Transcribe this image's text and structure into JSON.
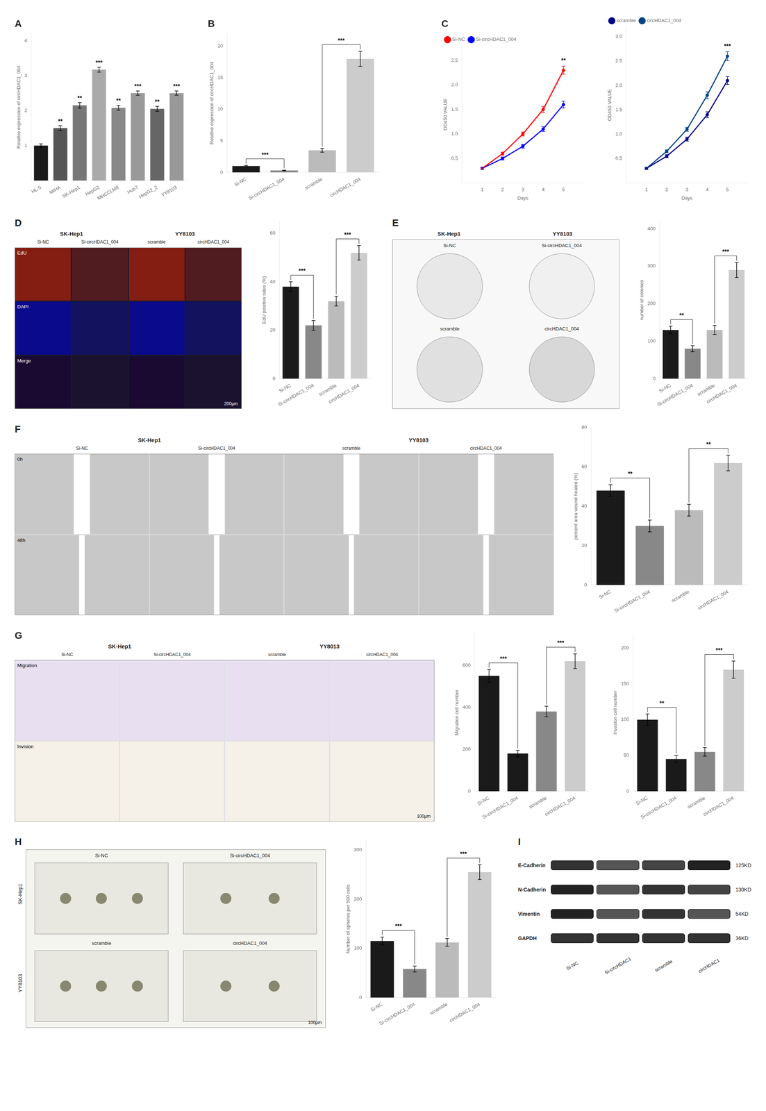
{
  "chart_data": [
    {
      "type": "bar",
      "title": "A",
      "categories": [
        "HL-5",
        "MIHA",
        "SK-Hep1",
        "HepG2",
        "MHCCLM8",
        "Huh7",
        "HepG2_2",
        "YY8103"
      ],
      "values": [
        1.0,
        1.5,
        2.15,
        3.17,
        2.08,
        2.5,
        2.05,
        2.5
      ],
      "errors": [
        0.05,
        0.07,
        0.08,
        0.07,
        0.07,
        0.06,
        0.07,
        0.06
      ],
      "colors": [
        "#1a1a1a",
        "#555555",
        "#777777",
        "#aaaaaa",
        "#888888",
        "#999999",
        "#666666",
        "#999999"
      ],
      "ylabel": "Relative expression of circHDAC1_004",
      "ylim": [
        0,
        4.2
      ],
      "yticks": [
        1,
        2,
        3,
        4
      ],
      "grid": false,
      "annotations": [
        {
          "category": "MIHA",
          "text": "**"
        },
        {
          "category": "SK-Hep1",
          "text": "**"
        },
        {
          "category": "HepG2",
          "text": "***"
        },
        {
          "category": "MHCCLM8",
          "text": "**"
        },
        {
          "category": "Huh7",
          "text": "***"
        },
        {
          "category": "HepG2_2",
          "text": "**"
        },
        {
          "category": "YY8103",
          "text": "***"
        }
      ]
    },
    {
      "type": "bar",
      "title": "B",
      "categories": [
        "Si-NC",
        "Si-circHDAC1_004",
        "scramble",
        "circHDAC1_004"
      ],
      "values": [
        1.0,
        0.3,
        3.5,
        18.0
      ],
      "errors": [
        0.1,
        0.05,
        0.3,
        1.2
      ],
      "colors": [
        "#1a1a1a",
        "#888888",
        "#bbbbbb",
        "#cccccc"
      ],
      "ylabel": "Relative expression of circHDAC1_004",
      "ylim": [
        0,
        22
      ],
      "yticks": [
        0,
        5,
        10,
        15,
        20
      ],
      "grid": false,
      "annotations": [
        {
          "from": "Si-NC",
          "to": "Si-circHDAC1_004",
          "text": "***"
        },
        {
          "from": "scramble",
          "to": "circHDAC1_004",
          "text": "***"
        }
      ]
    },
    {
      "type": "line",
      "title": "C",
      "x": [
        1,
        2,
        3,
        4,
        5
      ],
      "series": [
        {
          "name": "Si-NC",
          "color": "#ff0000",
          "marker": "circle",
          "values": [
            0.3,
            0.6,
            1.0,
            1.5,
            2.3
          ],
          "errors": [
            0.02,
            0.03,
            0.04,
            0.06,
            0.08
          ]
        },
        {
          "name": "Si-circHDAC1_004",
          "color": "#0000ff",
          "marker": "circle",
          "values": [
            0.3,
            0.5,
            0.75,
            1.1,
            1.6
          ],
          "errors": [
            0.02,
            0.03,
            0.04,
            0.05,
            0.07
          ]
        }
      ],
      "xlabel": "Days",
      "ylabel": "OD450 VALUE",
      "xlim": [
        0,
        6
      ],
      "xticks": [
        1,
        2,
        3,
        4,
        5
      ],
      "ylim": [
        0,
        2.8
      ],
      "yticks": [
        0.5,
        {
          "value": 1.0,
          "label": "1.0"
        },
        1.5,
        {
          "value": 2.0,
          "label": "2.0"
        },
        2.5
      ],
      "grid": false,
      "legend": "upper left",
      "annotations": [
        {
          "series": "Si-NC",
          "x": 5,
          "text": "**"
        }
      ]
    },
    {
      "type": "line",
      "x": [
        1,
        2,
        3,
        4,
        5
      ],
      "series": [
        {
          "name": "scramble",
          "color": "#000088",
          "marker": "circle",
          "values": [
            0.3,
            0.55,
            0.9,
            1.4,
            2.1
          ],
          "errors": [
            0.02,
            0.03,
            0.04,
            0.06,
            0.08
          ]
        },
        {
          "name": "circHDAC1_004",
          "color": "#004488",
          "marker": "circle",
          "values": [
            0.3,
            0.65,
            1.1,
            1.8,
            2.6
          ],
          "errors": [
            0.02,
            0.03,
            0.04,
            0.07,
            0.09
          ]
        }
      ],
      "xlabel": "Days",
      "ylabel": "OD450 VALUE",
      "xlim": [
        0,
        6
      ],
      "xticks": [
        1,
        2,
        3,
        4,
        5
      ],
      "ylim": [
        0,
        3.2
      ],
      "yticks": [
        0.5,
        {
          "value": 1.0,
          "label": "1.0"
        },
        1.5,
        {
          "value": 2.0,
          "label": "2.0"
        },
        2.5,
        {
          "value": 3.0,
          "label": "3.0"
        }
      ],
      "grid": false,
      "legend": "upper left",
      "annotations": [
        {
          "series": "circHDAC1_004",
          "x": 5,
          "text": "***"
        }
      ]
    },
    {
      "type": "image",
      "title": "D",
      "groups": [
        "SK-Hep1",
        "YY8103"
      ],
      "categories": [
        "Si-NC",
        "Si-circHDAC1_004",
        "scramble",
        "circHDAC1_004"
      ],
      "rows": [
        "EdU",
        "DAPI",
        "Merge"
      ],
      "annotations": [
        "200μm"
      ]
    },
    {
      "type": "bar",
      "categories": [
        "Si-NC",
        "Si-circHDAC1_004",
        "scramble",
        "circHDAC1_004"
      ],
      "values": [
        38,
        22,
        32,
        52
      ],
      "errors": [
        2,
        2,
        2,
        3
      ],
      "colors": [
        "#1a1a1a",
        "#888888",
        "#bbbbbb",
        "#cccccc"
      ],
      "ylabel": "EdU positive rates (%)",
      "ylim": [
        0,
        65
      ],
      "yticks": [
        0,
        20,
        40,
        60
      ],
      "grid": false,
      "annotations": [
        {
          "from": "Si-NC",
          "to": "Si-circHDAC1_004",
          "text": "***"
        },
        {
          "from": "scramble",
          "to": "circHDAC1_004",
          "text": "***"
        }
      ]
    },
    {
      "type": "image",
      "title": "E",
      "groups": [
        "SK-Hep1",
        "YY8103"
      ],
      "categories": [
        "Si-NC",
        "Si-circHDAC1_004",
        "scramble",
        "circHDAC1_004"
      ]
    },
    {
      "type": "bar",
      "categories": [
        "Si-NC",
        "Si-circHDAC1_004",
        "scramble",
        "circHDAC1_004"
      ],
      "values": [
        130,
        80,
        130,
        290
      ],
      "errors": [
        10,
        8,
        12,
        20
      ],
      "colors": [
        "#1a1a1a",
        "#888888",
        "#bbbbbb",
        "#cccccc"
      ],
      "ylabel": "number of colonies",
      "ylim": [
        0,
        420
      ],
      "yticks": [
        0,
        100,
        200,
        300,
        400
      ],
      "grid": false,
      "annotations": [
        {
          "from": "Si-NC",
          "to": "Si-circHDAC1_004",
          "text": "**"
        },
        {
          "from": "scramble",
          "to": "circHDAC1_004",
          "text": "***"
        }
      ]
    },
    {
      "type": "image",
      "title": "F",
      "groups": [
        "SK-Hep1",
        "YY8103"
      ],
      "categories": [
        "Si-NC",
        "Si-circHDAC1_004",
        "scramble",
        "circHDAC1_004"
      ],
      "rows": [
        "0h",
        "48h"
      ]
    },
    {
      "type": "bar",
      "categories": [
        "Si-NC",
        "Si-circHDAC1_004",
        "scramble",
        "circHDAC1_004"
      ],
      "values": [
        48,
        30,
        38,
        62
      ],
      "errors": [
        3,
        3,
        3,
        4
      ],
      "colors": [
        "#1a1a1a",
        "#888888",
        "#bbbbbb",
        "#cccccc"
      ],
      "ylabel": "percent area wound healed (%)",
      "ylim": [
        0,
        80
      ],
      "yticks": [
        0,
        20,
        40,
        60,
        80
      ],
      "grid": false,
      "annotations": [
        {
          "from": "Si-NC",
          "to": "Si-circHDAC1_004",
          "text": "**"
        },
        {
          "from": "scramble",
          "to": "circHDAC1_004",
          "text": "**"
        }
      ]
    },
    {
      "type": "image",
      "title": "G",
      "groups": [
        "SK-Hep1",
        "YY8013"
      ],
      "categories": [
        "Si-NC",
        "Si-circHDAC1_004",
        "scramble",
        "circHDAC1_004"
      ],
      "rows": [
        "Migration",
        "Invision"
      ],
      "annotations": [
        "100μm"
      ]
    },
    {
      "type": "bar",
      "categories": [
        "Si-NC",
        "Si-circHDAC1_004",
        "scramble",
        "circHDAC1_004"
      ],
      "values": [
        550,
        180,
        380,
        620
      ],
      "errors": [
        30,
        15,
        25,
        35
      ],
      "colors": [
        "#1a1a1a",
        "#1a1a1a",
        "#888888",
        "#cccccc"
      ],
      "ylabel": "Migration cell number",
      "ylim": [
        0,
        750
      ],
      "yticks": [
        0,
        200,
        400,
        600
      ],
      "grid": false,
      "annotations": [
        {
          "from": "Si-NC",
          "to": "Si-circHDAC1_004",
          "text": "***"
        },
        {
          "from": "scramble",
          "to": "circHDAC1_004",
          "text": "***"
        }
      ]
    },
    {
      "type": "bar",
      "categories": [
        "Si-NC",
        "Si-circHDAC1_004",
        "scramble",
        "circHDAC1_004"
      ],
      "values": [
        100,
        45,
        55,
        170
      ],
      "errors": [
        8,
        5,
        6,
        12
      ],
      "colors": [
        "#1a1a1a",
        "#1a1a1a",
        "#888888",
        "#cccccc"
      ],
      "ylabel": "Invasion cell number",
      "ylim": [
        0,
        220
      ],
      "yticks": [
        0,
        50,
        100,
        150,
        200
      ],
      "grid": false,
      "annotations": [
        {
          "from": "Si-NC",
          "to": "Si-circHDAC1_004",
          "text": "**"
        },
        {
          "from": "scramble",
          "to": "circHDAC1_004",
          "text": "***"
        }
      ]
    },
    {
      "type": "image",
      "title": "H",
      "groups": [
        "SK-Hep1",
        "YY8103"
      ],
      "categories": [
        "Si-NC",
        "Si-circHDAC1_004",
        "scramble",
        "circHDAC1_004"
      ],
      "annotations": [
        "100μm"
      ]
    },
    {
      "type": "bar",
      "categories": [
        "Si-NC",
        "Si-circHDAC1_004",
        "scramble",
        "circHDAC1_004"
      ],
      "values": [
        115,
        58,
        112,
        255
      ],
      "errors": [
        8,
        6,
        8,
        15
      ],
      "colors": [
        "#1a1a1a",
        "#888888",
        "#bbbbbb",
        "#cccccc"
      ],
      "ylabel": "Number of spheres per 500 cells",
      "ylim": [
        0,
        320
      ],
      "yticks": [
        0,
        100,
        200,
        300
      ],
      "grid": false,
      "annotations": [
        {
          "from": "Si-NC",
          "to": "Si-circHDAC1_004",
          "text": "***"
        },
        {
          "from": "scramble",
          "to": "circHDAC1_004",
          "text": "***"
        }
      ]
    },
    {
      "type": "blot",
      "title": "I",
      "rows": [
        "E-Cadherin",
        "N-Cadherin",
        "Vimentin",
        "GAPDH"
      ],
      "sizes": [
        "125KD",
        "130KD",
        "54KD",
        "36KD"
      ],
      "categories": [
        "Si-NC",
        "Si-circHDAC1",
        "scramble",
        "circHDAC1"
      ]
    }
  ]
}
